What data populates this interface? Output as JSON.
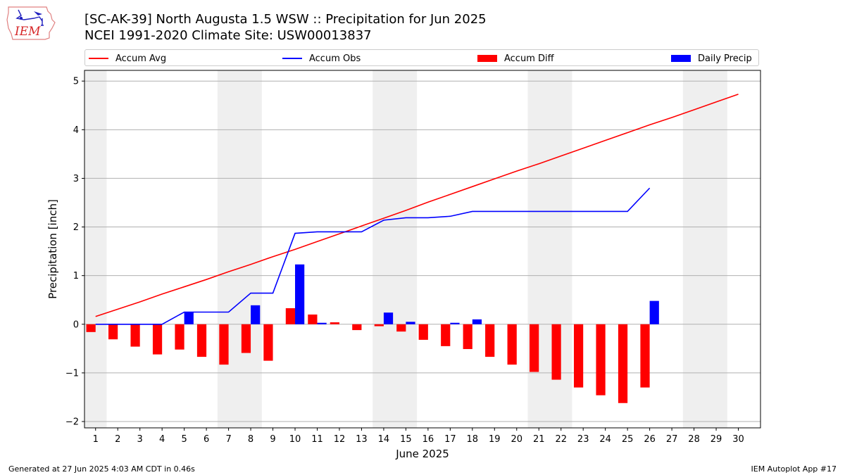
{
  "header": {
    "title_line1": "[SC-AK-39] North Augusta 1.5 WSW :: Precipitation for Jun 2025",
    "title_line2": "NCEI 1991-2020 Climate Site: USW00013837"
  },
  "logo": {
    "text": "IEM",
    "color": "#d62728"
  },
  "legend": [
    {
      "label": "Accum Avg",
      "kind": "line",
      "color": "#ff0000"
    },
    {
      "label": "Accum Obs",
      "kind": "line",
      "color": "#0000ff"
    },
    {
      "label": "Accum Diff",
      "kind": "patch",
      "color": "#ff0000"
    },
    {
      "label": "Daily Precip",
      "kind": "patch",
      "color": "#0000ff"
    }
  ],
  "footer": {
    "left": "Generated at 27 Jun 2025 4:03 AM CDT in 0.46s",
    "right": "IEM Autoplot App #17"
  },
  "chart_data": {
    "type": "bar",
    "xlabel": "June 2025",
    "ylabel": "Precipitation [inch]",
    "ylim": [
      -2.13,
      5.22
    ],
    "yticks": [
      -2,
      -1,
      0,
      1,
      2,
      3,
      4,
      5
    ],
    "xlim": [
      0.5,
      31.0
    ],
    "xticks": [
      1,
      2,
      3,
      4,
      5,
      6,
      7,
      8,
      9,
      10,
      11,
      12,
      13,
      14,
      15,
      16,
      17,
      18,
      19,
      20,
      21,
      22,
      23,
      24,
      25,
      26,
      27,
      28,
      29,
      30
    ],
    "grid": "horizontal",
    "shaded_day_ranges": [
      [
        0.5,
        1.5
      ],
      [
        6.5,
        8.5
      ],
      [
        13.5,
        15.5
      ],
      [
        20.5,
        22.5
      ],
      [
        27.5,
        29.5
      ]
    ],
    "days": [
      1,
      2,
      3,
      4,
      5,
      6,
      7,
      8,
      9,
      10,
      11,
      12,
      13,
      14,
      15,
      16,
      17,
      18,
      19,
      20,
      21,
      22,
      23,
      24,
      25,
      26,
      27,
      28,
      29,
      30
    ],
    "series": [
      {
        "name": "Accum Avg",
        "kind": "line",
        "color": "#ff0000",
        "values": [
          0.16,
          0.31,
          0.46,
          0.62,
          0.77,
          0.92,
          1.08,
          1.23,
          1.39,
          1.54,
          1.7,
          1.86,
          2.02,
          2.18,
          2.34,
          2.51,
          2.67,
          2.83,
          2.99,
          3.15,
          3.3,
          3.46,
          3.62,
          3.78,
          3.94,
          4.1,
          4.25,
          4.41,
          4.57,
          4.73
        ]
      },
      {
        "name": "Accum Obs",
        "kind": "line",
        "color": "#0000ff",
        "values": [
          0.0,
          0.0,
          0.0,
          0.0,
          0.25,
          0.25,
          0.25,
          0.64,
          0.64,
          1.87,
          1.9,
          1.9,
          1.9,
          2.14,
          2.19,
          2.19,
          2.22,
          2.32,
          2.32,
          2.32,
          2.32,
          2.32,
          2.32,
          2.32,
          2.32,
          2.8
        ]
      },
      {
        "name": "Accum Diff",
        "kind": "bar",
        "color": "#ff0000",
        "values": [
          -0.16,
          -0.31,
          -0.46,
          -0.62,
          -0.52,
          -0.67,
          -0.83,
          -0.59,
          -0.75,
          0.33,
          0.2,
          0.04,
          -0.12,
          -0.04,
          -0.15,
          -0.32,
          -0.45,
          -0.51,
          -0.67,
          -0.83,
          -0.98,
          -1.14,
          -1.3,
          -1.46,
          -1.62,
          -1.3
        ]
      },
      {
        "name": "Daily Precip",
        "kind": "bar",
        "color": "#0000ff",
        "values": [
          0.0,
          0.0,
          0.0,
          0.0,
          0.25,
          0.0,
          0.0,
          0.39,
          0.0,
          1.23,
          0.03,
          0.0,
          0.0,
          0.24,
          0.05,
          0.0,
          0.03,
          0.1,
          0.0,
          0.0,
          0.0,
          0.0,
          0.0,
          0.0,
          0.0,
          0.48
        ]
      }
    ]
  }
}
